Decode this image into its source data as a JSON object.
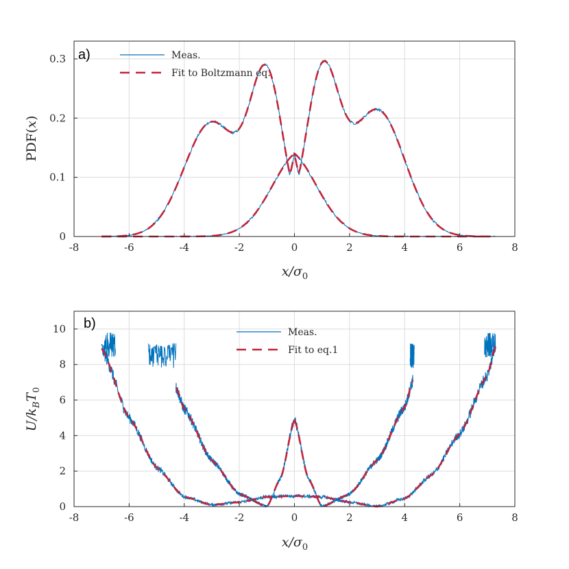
{
  "colors": {
    "meas": "#0072BD",
    "fit": "#C0233A",
    "grid": "#dcdcdc",
    "axis": "#262626"
  },
  "chart_data": [
    {
      "panel_label": "a)",
      "type": "line",
      "xlabel": "x/σ₀",
      "xlabel_parts": [
        "x/σ",
        "0"
      ],
      "ylabel": "PDF(x)",
      "ylabel_parts": [
        "PDF(",
        "x",
        ")"
      ],
      "xlim": [
        -8,
        8
      ],
      "ylim": [
        0,
        0.33
      ],
      "xticks": [
        -8,
        -6,
        -4,
        -2,
        0,
        2,
        4,
        6,
        8
      ],
      "yticks": [
        0,
        0.1,
        0.2,
        0.3
      ],
      "ytick_labels": [
        "0",
        "0.1",
        "0.2",
        "0.3"
      ],
      "grid": true,
      "legend": [
        "Meas.",
        "Fit to Boltzmann eq."
      ],
      "legend_position": "top-left",
      "series": [
        {
          "name": "Meas.",
          "kind": "measured",
          "components": [
            {
              "wells": [
                {
                  "center": -3,
                  "sigma": 1.0,
                  "amp": 0.193
                },
                {
                  "center": -1,
                  "sigma": 0.6,
                  "amp": 0.262
                }
              ],
              "cusp": {
                "x": 0,
                "y": 0.14
              },
              "range": [
                -7,
                7
              ]
            },
            {
              "wells": [
                {
                  "center": 3,
                  "sigma": 1.0,
                  "amp": 0.214
                },
                {
                  "center": 1,
                  "sigma": 0.6,
                  "amp": 0.265
                }
              ],
              "cusp": {
                "x": 0,
                "y": 0.14
              },
              "range": [
                -7,
                7.3
              ]
            }
          ]
        },
        {
          "name": "Fit to Boltzmann eq.",
          "kind": "fit",
          "components": [
            {
              "wells": [
                {
                  "center": -3,
                  "sigma": 1.0,
                  "amp": 0.193
                },
                {
                  "center": -1,
                  "sigma": 0.6,
                  "amp": 0.262
                }
              ],
              "cusp": {
                "x": 0,
                "y": 0.14
              },
              "range": [
                -7,
                7
              ]
            },
            {
              "wells": [
                {
                  "center": 3,
                  "sigma": 1.0,
                  "amp": 0.214
                },
                {
                  "center": 1,
                  "sigma": 0.6,
                  "amp": 0.265
                }
              ],
              "cusp": {
                "x": 0,
                "y": 0.14
              },
              "range": [
                -7,
                7.3
              ]
            }
          ]
        }
      ]
    },
    {
      "panel_label": "b)",
      "type": "line",
      "xlabel": "x/σ₀",
      "xlabel_parts": [
        "x/σ",
        "0"
      ],
      "ylabel": "U/k_B T_0",
      "ylabel_parts": [
        "U/k",
        "B",
        "T",
        "0"
      ],
      "xlim": [
        -8,
        8
      ],
      "ylim": [
        0,
        11
      ],
      "xticks": [
        -8,
        -6,
        -4,
        -2,
        0,
        2,
        4,
        6,
        8
      ],
      "yticks": [
        0,
        2,
        4,
        6,
        8,
        10
      ],
      "ytick_labels": [
        "0",
        "2",
        "4",
        "6",
        "8",
        "10"
      ],
      "grid": true,
      "legend": [
        "Meas.",
        "Fit to eq.1"
      ],
      "legend_position": "top-center",
      "series": [
        {
          "name": "Meas.",
          "kind": "measured",
          "components": [
            {
              "description": "left well pair",
              "range": [
                -7,
                4.3
              ],
              "center": -3,
              "a": 0.48,
              "b": 0.06,
              "cusp": {
                "x": 0,
                "y": 0.6
              },
              "cap": 9.2
            },
            {
              "description": "inner wells",
              "range": [
                -5.3,
                4.3
              ],
              "center": -1,
              "a": 0.6,
              "b": 0.0,
              "cusp": {
                "x": 0,
                "y": 4.9
              },
              "cap": 9.2
            },
            {
              "description": "right well pair",
              "range": [
                -4.3,
                7.3
              ],
              "center": 3,
              "a": 0.45,
              "b": 0.06,
              "cusp": {
                "x": 0,
                "y": 0.6
              },
              "cap": 9.8
            }
          ]
        },
        {
          "name": "Fit to eq.1",
          "kind": "fit",
          "components": [
            {
              "range": [
                -7,
                0
              ],
              "points": [
                [
                  -7,
                  8.9
                ],
                [
                  -6,
                  5.0
                ],
                [
                  -5,
                  2.2
                ],
                [
                  -4,
                  0.55
                ],
                [
                  -3,
                  0.1
                ],
                [
                  -2,
                  0.25
                ],
                [
                  -1,
                  0.55
                ],
                [
                  0,
                  0.6
                ]
              ]
            },
            {
              "range": [
                -4.3,
                0
              ],
              "points": [
                [
                  -4.3,
                  6.7
                ],
                [
                  -4,
                  5.5
                ],
                [
                  -3,
                  2.6
                ],
                [
                  -2,
                  0.7
                ],
                [
                  -1,
                  0.0
                ],
                [
                  -0.5,
                  1.6
                ],
                [
                  0,
                  4.9
                ]
              ]
            },
            {
              "range": [
                0,
                4.3
              ],
              "points": [
                [
                  0,
                  4.9
                ],
                [
                  0.5,
                  1.6
                ],
                [
                  1,
                  0.0
                ],
                [
                  2,
                  0.7
                ],
                [
                  3,
                  2.6
                ],
                [
                  4,
                  5.6
                ],
                [
                  4.3,
                  7.1
                ]
              ]
            },
            {
              "range": [
                0,
                7.3
              ],
              "points": [
                [
                  0,
                  0.6
                ],
                [
                  1,
                  0.55
                ],
                [
                  2,
                  0.25
                ],
                [
                  3,
                  0.0
                ],
                [
                  4,
                  0.45
                ],
                [
                  5,
                  1.8
                ],
                [
                  6,
                  4.1
                ],
                [
                  7,
                  7.4
                ],
                [
                  7.3,
                  9.0
                ]
              ]
            }
          ]
        }
      ]
    }
  ]
}
